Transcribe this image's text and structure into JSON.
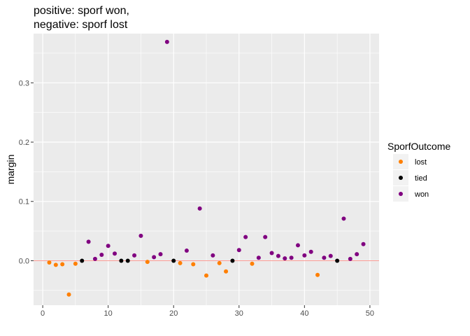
{
  "chart_data": {
    "type": "scatter",
    "title_line1": "positive: sporf won,",
    "title_line2": "negative: sporf lost",
    "xlabel": "",
    "ylabel": "margin",
    "xlim": [
      -1.4,
      51.4
    ],
    "ylim": [
      -0.075,
      0.383
    ],
    "x_ticks": [
      0,
      10,
      20,
      30,
      40,
      50
    ],
    "y_ticks": [
      0.0,
      0.1,
      0.2,
      0.3
    ],
    "y_tick_labels": [
      "0.0",
      "0.1",
      "0.2",
      "0.3"
    ],
    "grid": true,
    "reference_line": {
      "y": 0,
      "color": "#f8766d"
    },
    "legend": {
      "title": "SporfOutcome",
      "position": "right",
      "entries": [
        {
          "label": "lost",
          "color": "#ff7f00"
        },
        {
          "label": "tied",
          "color": "#000000"
        },
        {
          "label": "won",
          "color": "#800080"
        }
      ]
    },
    "colors": {
      "lost": "#ff7f00",
      "tied": "#000000",
      "won": "#800080"
    },
    "points": [
      {
        "x": 1,
        "y": -0.003,
        "outcome": "lost"
      },
      {
        "x": 2,
        "y": -0.007,
        "outcome": "lost"
      },
      {
        "x": 3,
        "y": -0.006,
        "outcome": "lost"
      },
      {
        "x": 4,
        "y": -0.057,
        "outcome": "lost"
      },
      {
        "x": 5,
        "y": -0.005,
        "outcome": "lost"
      },
      {
        "x": 6,
        "y": 0.0,
        "outcome": "tied"
      },
      {
        "x": 7,
        "y": 0.032,
        "outcome": "won"
      },
      {
        "x": 8,
        "y": 0.003,
        "outcome": "won"
      },
      {
        "x": 9,
        "y": 0.01,
        "outcome": "won"
      },
      {
        "x": 10,
        "y": 0.025,
        "outcome": "won"
      },
      {
        "x": 11,
        "y": 0.012,
        "outcome": "won"
      },
      {
        "x": 12,
        "y": 0.0,
        "outcome": "tied"
      },
      {
        "x": 13,
        "y": 0.0,
        "outcome": "tied"
      },
      {
        "x": 14,
        "y": 0.009,
        "outcome": "won"
      },
      {
        "x": 15,
        "y": 0.042,
        "outcome": "won"
      },
      {
        "x": 16,
        "y": -0.002,
        "outcome": "lost"
      },
      {
        "x": 17,
        "y": 0.006,
        "outcome": "won"
      },
      {
        "x": 18,
        "y": 0.011,
        "outcome": "won"
      },
      {
        "x": 19,
        "y": 0.369,
        "outcome": "won"
      },
      {
        "x": 20,
        "y": 0.0,
        "outcome": "tied"
      },
      {
        "x": 21,
        "y": -0.004,
        "outcome": "lost"
      },
      {
        "x": 22,
        "y": 0.017,
        "outcome": "won"
      },
      {
        "x": 23,
        "y": -0.006,
        "outcome": "lost"
      },
      {
        "x": 24,
        "y": 0.088,
        "outcome": "won"
      },
      {
        "x": 25,
        "y": -0.025,
        "outcome": "lost"
      },
      {
        "x": 26,
        "y": 0.009,
        "outcome": "won"
      },
      {
        "x": 27,
        "y": -0.004,
        "outcome": "lost"
      },
      {
        "x": 28,
        "y": -0.018,
        "outcome": "lost"
      },
      {
        "x": 29,
        "y": 0.0,
        "outcome": "tied"
      },
      {
        "x": 30,
        "y": 0.018,
        "outcome": "won"
      },
      {
        "x": 31,
        "y": 0.04,
        "outcome": "won"
      },
      {
        "x": 32,
        "y": -0.005,
        "outcome": "lost"
      },
      {
        "x": 33,
        "y": 0.005,
        "outcome": "won"
      },
      {
        "x": 34,
        "y": 0.04,
        "outcome": "won"
      },
      {
        "x": 35,
        "y": 0.013,
        "outcome": "won"
      },
      {
        "x": 36,
        "y": 0.008,
        "outcome": "won"
      },
      {
        "x": 37,
        "y": 0.004,
        "outcome": "won"
      },
      {
        "x": 38,
        "y": 0.005,
        "outcome": "won"
      },
      {
        "x": 39,
        "y": 0.026,
        "outcome": "won"
      },
      {
        "x": 40,
        "y": 0.009,
        "outcome": "won"
      },
      {
        "x": 41,
        "y": 0.015,
        "outcome": "won"
      },
      {
        "x": 42,
        "y": -0.024,
        "outcome": "lost"
      },
      {
        "x": 43,
        "y": 0.005,
        "outcome": "won"
      },
      {
        "x": 44,
        "y": 0.008,
        "outcome": "won"
      },
      {
        "x": 45,
        "y": 0.0,
        "outcome": "tied"
      },
      {
        "x": 46,
        "y": 0.071,
        "outcome": "won"
      },
      {
        "x": 47,
        "y": 0.003,
        "outcome": "won"
      },
      {
        "x": 48,
        "y": 0.011,
        "outcome": "won"
      },
      {
        "x": 49,
        "y": 0.028,
        "outcome": "won"
      }
    ]
  }
}
